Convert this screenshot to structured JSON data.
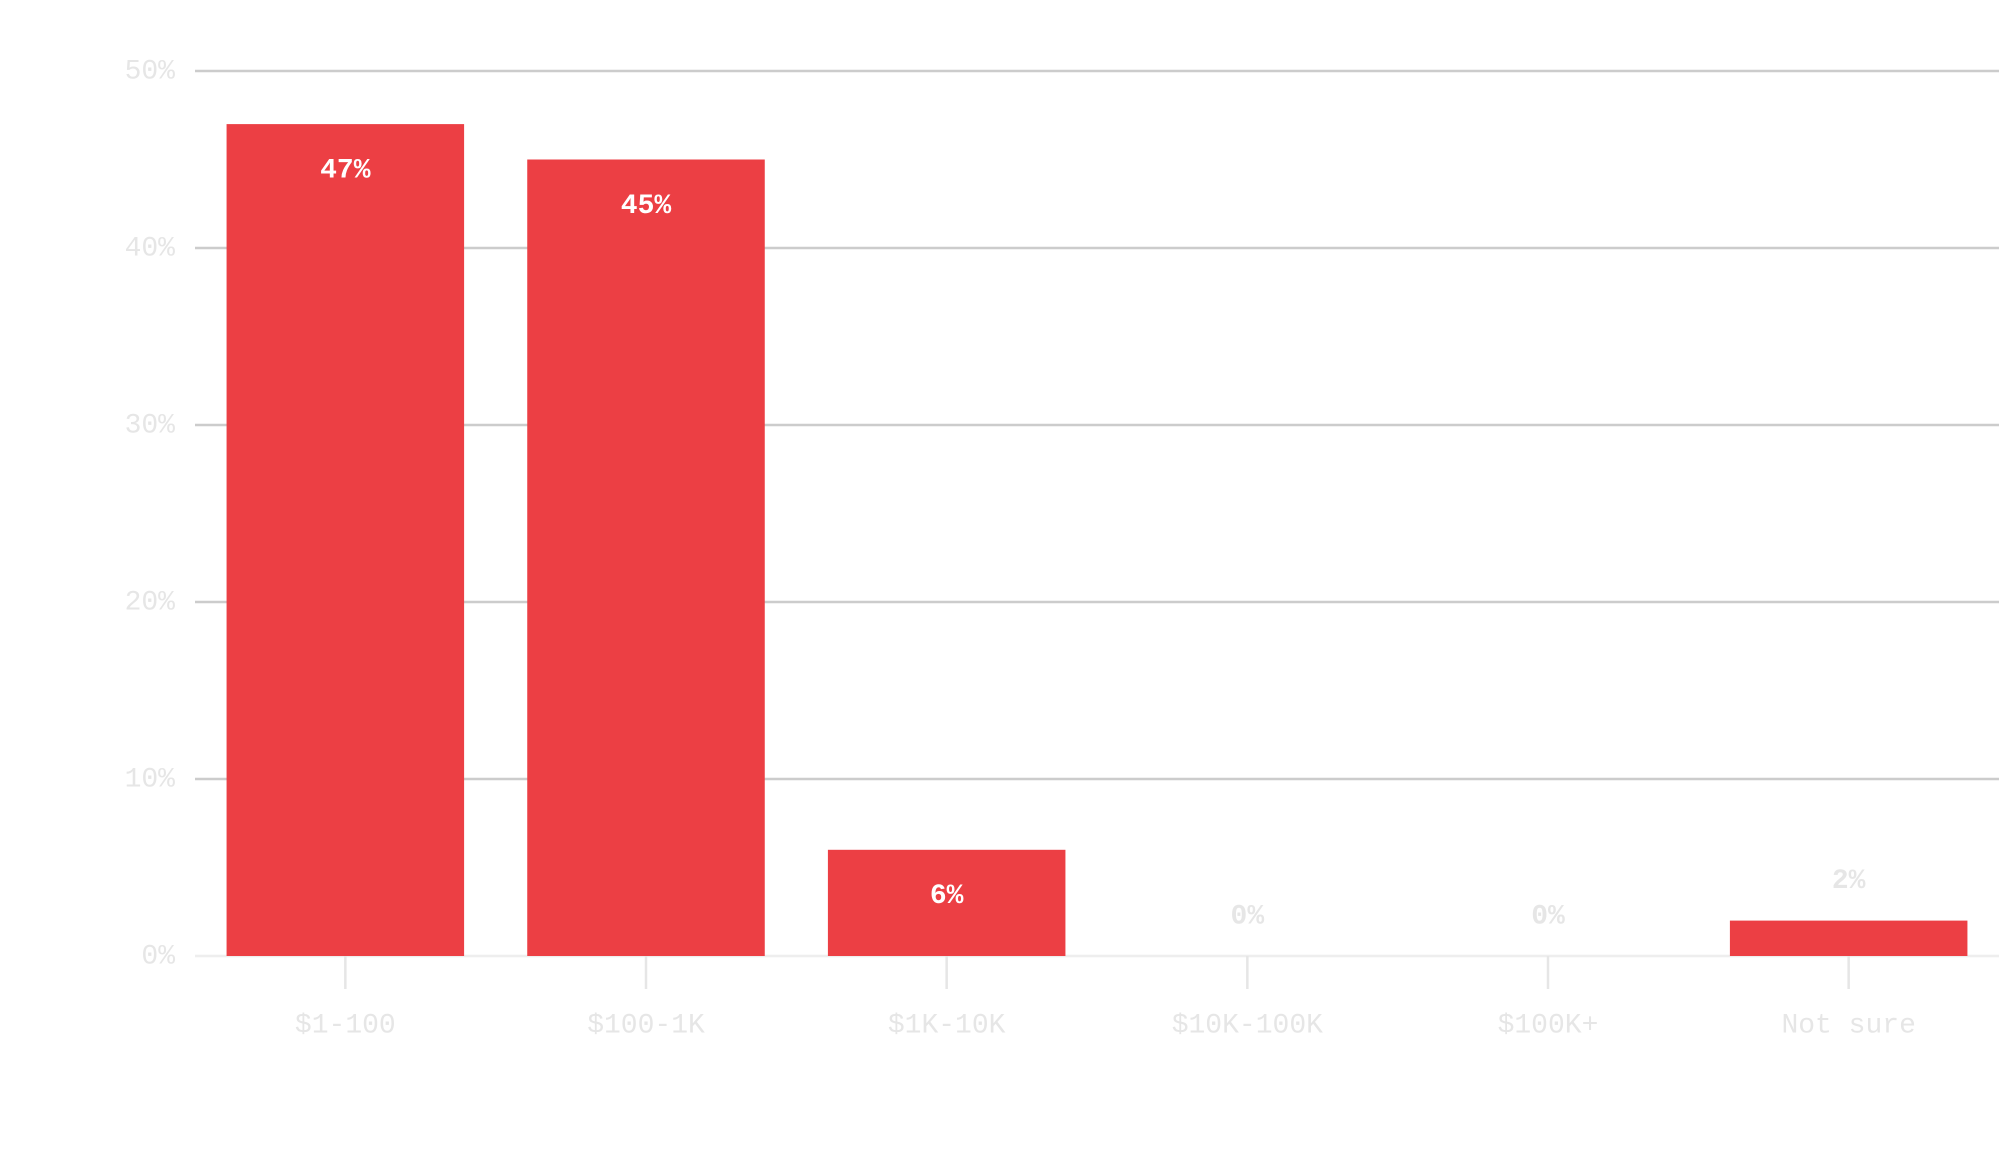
{
  "chart_data": {
    "type": "bar",
    "categories": [
      "$1-100",
      "$100-1K",
      "$1K-10K",
      "$10K-100K",
      "$100K+",
      "Not sure"
    ],
    "values": [
      47,
      45,
      6,
      0,
      0,
      2
    ],
    "value_labels": [
      "47%",
      "45%",
      "6%",
      "0%",
      "0%",
      "2%"
    ],
    "color": "#ec3f44",
    "ylim": [
      0,
      50
    ],
    "yticks": [
      {
        "value": 0,
        "label": "0%"
      },
      {
        "value": 10,
        "label": "10%"
      },
      {
        "value": 20,
        "label": "20%"
      },
      {
        "value": 30,
        "label": "30%"
      },
      {
        "value": 40,
        "label": "40%"
      },
      {
        "value": 50,
        "label": "50%"
      }
    ],
    "grid": true
  }
}
